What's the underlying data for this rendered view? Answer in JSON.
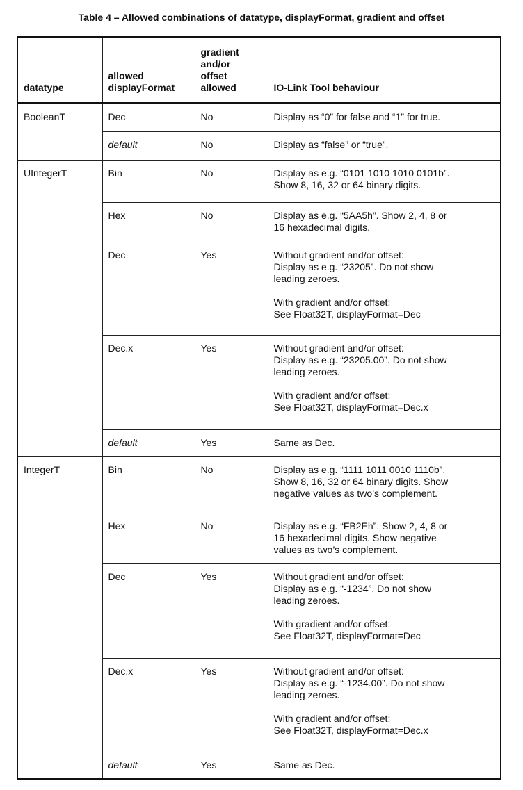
{
  "title": "Table 4 – Allowed combinations of datatype, displayFormat, gradient and offset",
  "headers": [
    "datatype",
    "allowed\ndisplayFormat",
    "gradient\nand/or\noffset\nallowed",
    "IO-Link Tool behaviour"
  ],
  "groups": [
    {
      "datatype": "BooleanT",
      "rows": [
        {
          "format": "Dec",
          "allowed": "No",
          "behaviour": "Display as “0” for false and “1” for true."
        },
        {
          "format": "default",
          "allowed": "No",
          "behaviour": "Display as “false” or “true”."
        }
      ]
    },
    {
      "datatype": "UIntegerT",
      "rows": [
        {
          "format": "Bin",
          "allowed": "No",
          "behaviour": "Display as e.g. “0101 1010 1010 0101b”.\nShow 8, 16, 32 or 64 binary digits."
        },
        {
          "format": "Hex",
          "allowed": "No",
          "behaviour": "Display as e.g. “5AA5h”. Show 2, 4, 8 or\n16 hexadecimal digits."
        },
        {
          "format": "Dec",
          "allowed": "Yes",
          "behaviour": "Without gradient and/or offset:\nDisplay as e.g. “23205”. Do not show\nleading zeroes.\n\nWith gradient and/or offset:\nSee Float32T, displayFormat=Dec"
        },
        {
          "format": "Dec.x",
          "allowed": "Yes",
          "behaviour": "Without gradient and/or offset:\nDisplay as e.g. “23205.00”. Do not show\nleading zeroes.\n\nWith gradient and/or offset:\nSee Float32T, displayFormat=Dec.x"
        },
        {
          "format": "default",
          "allowed": "Yes",
          "behaviour": "Same as Dec."
        }
      ]
    },
    {
      "datatype": "IntegerT",
      "rows": [
        {
          "format": "Bin",
          "allowed": "No",
          "behaviour": "Display as e.g. “1111 1011 0010 1110b”.\nShow 8, 16, 32 or 64 binary digits. Show\nnegative values as two’s complement."
        },
        {
          "format": "Hex",
          "allowed": "No",
          "behaviour": "Display as e.g. “FB2Eh”. Show 2, 4, 8 or\n16 hexadecimal digits. Show negative\nvalues as two’s complement."
        },
        {
          "format": "Dec",
          "allowed": "Yes",
          "behaviour": "Without gradient and/or offset:\nDisplay as e.g. “-1234”. Do not show\nleading zeroes.\n\nWith gradient and/or offset:\nSee Float32T, displayFormat=Dec"
        },
        {
          "format": "Dec.x",
          "allowed": "Yes",
          "behaviour": "Without gradient and/or offset:\nDisplay as e.g. “-1234.00”. Do not show\nleading zeroes.\n\nWith gradient and/or offset:\nSee Float32T, displayFormat=Dec.x"
        },
        {
          "format": "default",
          "allowed": "Yes",
          "behaviour": "Same as Dec."
        }
      ]
    }
  ]
}
